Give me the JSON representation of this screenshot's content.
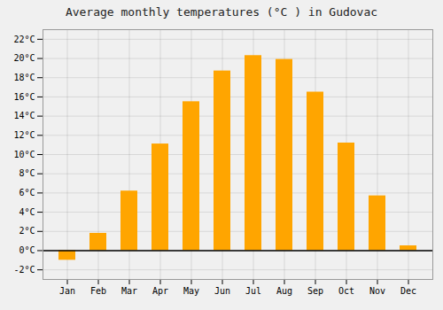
{
  "chart_data": {
    "type": "bar",
    "title": "Average monthly temperatures (°C ) in Gudovac",
    "categories": [
      "Jan",
      "Feb",
      "Mar",
      "Apr",
      "May",
      "Jun",
      "Jul",
      "Aug",
      "Sep",
      "Oct",
      "Nov",
      "Dec"
    ],
    "values": [
      -1.0,
      1.8,
      6.2,
      11.1,
      15.5,
      18.7,
      20.3,
      19.9,
      16.5,
      11.2,
      5.7,
      0.5
    ],
    "color": "#FFA500",
    "ylim": [
      -3,
      23
    ],
    "yticks": [
      {
        "value": -2,
        "label": "-2°C"
      },
      {
        "value": 0,
        "label": "0°C"
      },
      {
        "value": 2,
        "label": "2°C"
      },
      {
        "value": 4,
        "label": "4°C"
      },
      {
        "value": 6,
        "label": "6°C"
      },
      {
        "value": 8,
        "label": "8°C"
      },
      {
        "value": 10,
        "label": "10°C"
      },
      {
        "value": 12,
        "label": "12°C"
      },
      {
        "value": 14,
        "label": "14°C"
      },
      {
        "value": 16,
        "label": "16°C"
      },
      {
        "value": 18,
        "label": "18°C"
      },
      {
        "value": 20,
        "label": "20°C"
      },
      {
        "value": 22,
        "label": "22°C"
      }
    ],
    "grid": true
  }
}
